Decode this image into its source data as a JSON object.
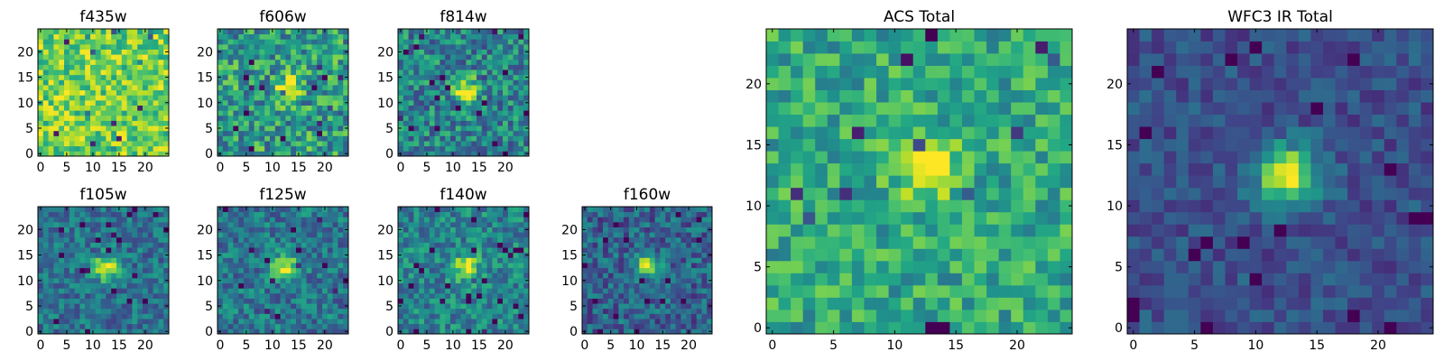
{
  "figure": {
    "type": "image-grid",
    "description_title": "HST cutouts by filter with ACS and WFC3 IR totals"
  },
  "chart_data": [
    {
      "type": "heatmap",
      "title": "f435w",
      "grid_size": 25,
      "colormap": "viridis",
      "xlim": [
        0,
        24
      ],
      "ylim": [
        0,
        24
      ],
      "xticks": [
        0,
        5,
        10,
        15,
        20
      ],
      "yticks": [
        0,
        5,
        10,
        15,
        20
      ],
      "source_center": [
        12.5,
        12.5
      ],
      "source_peak": 0.0,
      "background": 0.78,
      "noise": 0.22,
      "seed": 11
    },
    {
      "type": "heatmap",
      "title": "f606w",
      "grid_size": 25,
      "colormap": "viridis",
      "xlim": [
        0,
        24
      ],
      "ylim": [
        0,
        24
      ],
      "xticks": [
        0,
        5,
        10,
        15,
        20
      ],
      "yticks": [
        0,
        5,
        10,
        15,
        20
      ],
      "source_center": [
        13,
        13
      ],
      "source_peak": 0.45,
      "background": 0.55,
      "noise": 0.28,
      "seed": 23
    },
    {
      "type": "heatmap",
      "title": "f814w",
      "grid_size": 25,
      "colormap": "viridis",
      "xlim": [
        0,
        24
      ],
      "ylim": [
        0,
        24
      ],
      "xticks": [
        0,
        5,
        10,
        15,
        20
      ],
      "yticks": [
        0,
        5,
        10,
        15,
        20
      ],
      "source_center": [
        12.5,
        12.5
      ],
      "source_peak": 0.6,
      "background": 0.45,
      "noise": 0.25,
      "seed": 37
    },
    {
      "type": "heatmap",
      "title": "f105w",
      "grid_size": 25,
      "colormap": "viridis",
      "xlim": [
        0,
        24
      ],
      "ylim": [
        0,
        24
      ],
      "xticks": [
        0,
        5,
        10,
        15,
        20
      ],
      "yticks": [
        0,
        5,
        10,
        15,
        20
      ],
      "source_center": [
        12.5,
        12.5
      ],
      "source_peak": 0.6,
      "background": 0.38,
      "noise": 0.18,
      "seed": 41
    },
    {
      "type": "heatmap",
      "title": "f125w",
      "grid_size": 25,
      "colormap": "viridis",
      "xlim": [
        0,
        24
      ],
      "ylim": [
        0,
        24
      ],
      "xticks": [
        0,
        5,
        10,
        15,
        20
      ],
      "yticks": [
        0,
        5,
        10,
        15,
        20
      ],
      "source_center": [
        12.5,
        12.5
      ],
      "source_peak": 0.6,
      "background": 0.4,
      "noise": 0.2,
      "seed": 53
    },
    {
      "type": "heatmap",
      "title": "f140w",
      "grid_size": 25,
      "colormap": "viridis",
      "xlim": [
        0,
        24
      ],
      "ylim": [
        0,
        24
      ],
      "xticks": [
        0,
        5,
        10,
        15,
        20
      ],
      "yticks": [
        0,
        5,
        10,
        15,
        20
      ],
      "source_center": [
        12.5,
        12.5
      ],
      "source_peak": 0.55,
      "background": 0.45,
      "noise": 0.2,
      "seed": 67
    },
    {
      "type": "heatmap",
      "title": "f160w",
      "grid_size": 25,
      "colormap": "viridis",
      "xlim": [
        0,
        24
      ],
      "ylim": [
        0,
        24
      ],
      "xticks": [
        0,
        5,
        10,
        15,
        20
      ],
      "yticks": [
        0,
        5,
        10,
        15,
        20
      ],
      "source_center": [
        12,
        13
      ],
      "source_peak": 0.6,
      "background": 0.32,
      "noise": 0.2,
      "seed": 79
    },
    {
      "type": "heatmap",
      "title": "ACS Total",
      "grid_size": 25,
      "colormap": "viridis",
      "xlim": [
        0,
        24
      ],
      "ylim": [
        0,
        24
      ],
      "xticks": [
        0,
        5,
        10,
        15,
        20
      ],
      "yticks": [
        0,
        5,
        10,
        15,
        20
      ],
      "source_center": [
        12.5,
        13
      ],
      "source_peak": 0.45,
      "background": 0.6,
      "noise": 0.2,
      "seed": 97
    },
    {
      "type": "heatmap",
      "title": "WFC3 IR Total",
      "grid_size": 25,
      "colormap": "viridis",
      "xlim": [
        0,
        24
      ],
      "ylim": [
        0,
        24
      ],
      "xticks": [
        0,
        5,
        10,
        15,
        20
      ],
      "yticks": [
        0,
        5,
        10,
        15,
        20
      ],
      "source_center": [
        12.5,
        12.5
      ],
      "source_peak": 0.75,
      "background": 0.25,
      "noise": 0.12,
      "seed": 101
    }
  ]
}
